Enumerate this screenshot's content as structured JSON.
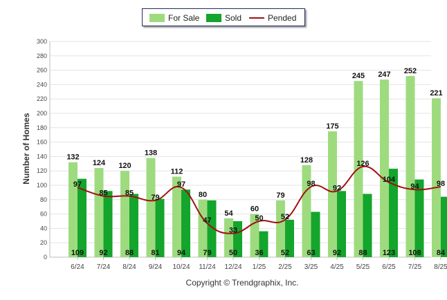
{
  "legend": {
    "for_sale": "For Sale",
    "sold": "Sold",
    "pended": "Pended"
  },
  "copyright": "Copyright © Trendgraphix, Inc.",
  "colors": {
    "for_sale": "#9edb7f",
    "sold": "#14a52c",
    "pended": "#a01010"
  },
  "chart_data": {
    "type": "bar",
    "title": "",
    "xlabel": "",
    "ylabel": "Number of Homes",
    "ylim": [
      0,
      300
    ],
    "yticks": [
      0,
      20,
      40,
      60,
      80,
      100,
      120,
      140,
      160,
      180,
      200,
      220,
      240,
      260,
      280,
      300
    ],
    "grid": true,
    "legend_position": "top-center",
    "categories": [
      "6/24",
      "7/24",
      "8/24",
      "9/24",
      "10/24",
      "11/24",
      "12/24",
      "1/25",
      "2/25",
      "3/25",
      "4/25",
      "5/25",
      "6/25",
      "7/25",
      "8/25"
    ],
    "series": [
      {
        "name": "For Sale",
        "type": "bar",
        "values": [
          132,
          124,
          120,
          138,
          112,
          80,
          54,
          60,
          79,
          128,
          175,
          245,
          247,
          252,
          221
        ]
      },
      {
        "name": "Sold",
        "type": "bar",
        "values": [
          109,
          92,
          88,
          81,
          94,
          79,
          50,
          36,
          52,
          63,
          92,
          88,
          123,
          108,
          84
        ]
      },
      {
        "name": "Pended",
        "type": "line",
        "values": [
          97,
          85,
          85,
          79,
          97,
          47,
          33,
          50,
          52,
          98,
          92,
          126,
          104,
          94,
          98
        ]
      }
    ]
  }
}
